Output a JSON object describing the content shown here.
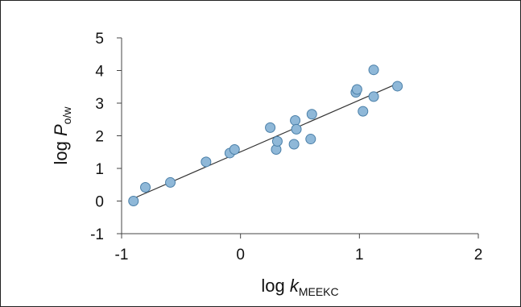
{
  "chart_data": {
    "type": "scatter",
    "title": "",
    "xlabel": {
      "prefix": "log ",
      "symbol": "k",
      "subscript": "MEEKC"
    },
    "ylabel": {
      "prefix": "log ",
      "symbol": "P",
      "subscript": "o/w"
    },
    "xlim": [
      -1,
      2
    ],
    "ylim": [
      -1,
      5
    ],
    "xticks": [
      "-1",
      "0",
      "1",
      "2"
    ],
    "yticks": [
      "-1",
      "0",
      "1",
      "2",
      "3",
      "4",
      "5"
    ],
    "grid": false,
    "legend": "none",
    "marker_color": "#8fb8d8",
    "marker_edge_color": "#4a7fa8",
    "trendline_color": "#333333",
    "series": [
      {
        "points": [
          [
            -0.9,
            0.0
          ],
          [
            -0.8,
            0.42
          ],
          [
            -0.59,
            0.57
          ],
          [
            -0.29,
            1.2
          ],
          [
            -0.09,
            1.47
          ],
          [
            -0.05,
            1.58
          ],
          [
            0.25,
            2.25
          ],
          [
            0.3,
            1.58
          ],
          [
            0.31,
            1.83
          ],
          [
            0.45,
            1.74
          ],
          [
            0.46,
            2.47
          ],
          [
            0.47,
            2.2
          ],
          [
            0.59,
            1.9
          ],
          [
            0.6,
            2.66
          ],
          [
            0.97,
            3.33
          ],
          [
            0.98,
            3.42
          ],
          [
            1.03,
            2.75
          ],
          [
            1.12,
            3.2
          ],
          [
            1.12,
            4.02
          ],
          [
            1.32,
            3.52
          ]
        ],
        "trendline": [
          [
            -0.9,
            0.08
          ],
          [
            1.32,
            3.6
          ]
        ]
      }
    ]
  }
}
